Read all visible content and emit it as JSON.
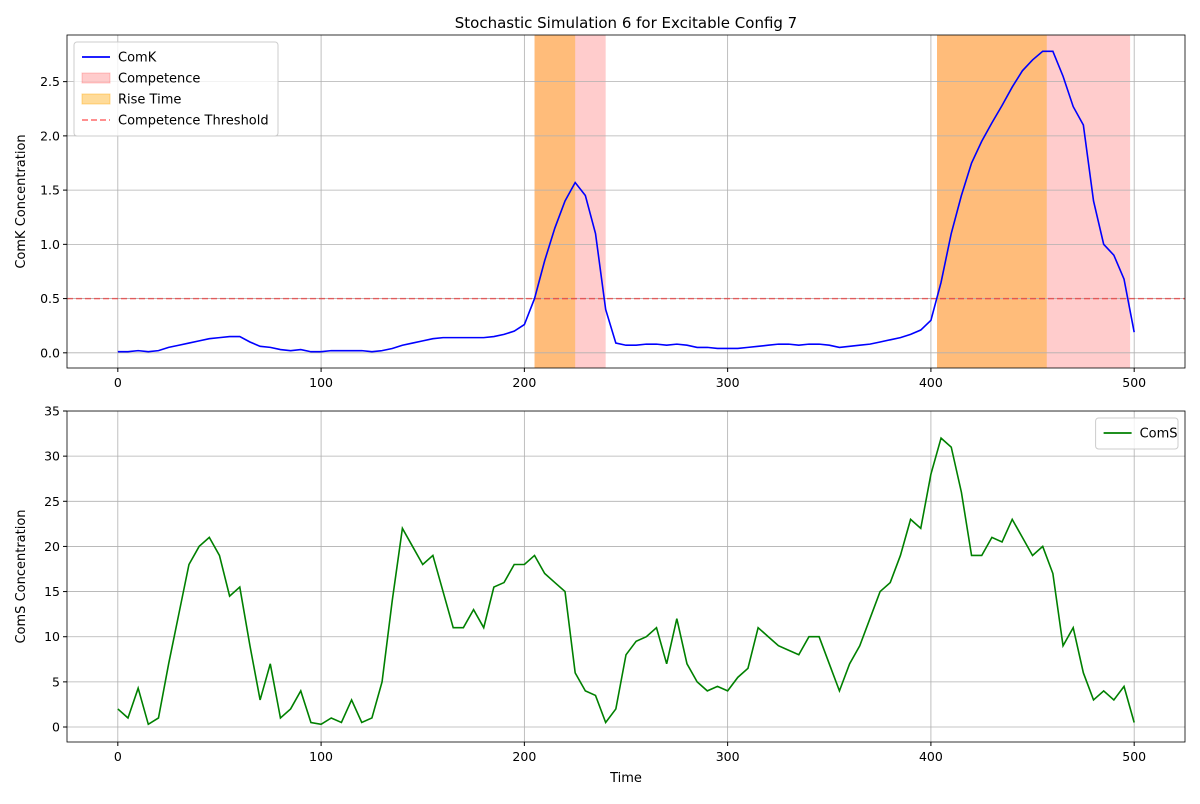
{
  "chart_data": [
    {
      "type": "line",
      "title": "Stochastic Simulation 6 for Excitable Config 7",
      "ylabel": "ComK Concentration",
      "x": [
        0,
        5,
        10,
        15,
        20,
        25,
        30,
        35,
        40,
        45,
        50,
        55,
        60,
        65,
        70,
        75,
        80,
        85,
        90,
        95,
        100,
        105,
        110,
        115,
        120,
        125,
        130,
        135,
        140,
        145,
        150,
        155,
        160,
        165,
        170,
        175,
        180,
        185,
        190,
        195,
        200,
        205,
        210,
        215,
        220,
        225,
        230,
        235,
        240,
        245,
        250,
        255,
        260,
        265,
        270,
        275,
        280,
        285,
        290,
        295,
        300,
        305,
        310,
        315,
        320,
        325,
        330,
        335,
        340,
        345,
        350,
        355,
        360,
        365,
        370,
        375,
        380,
        385,
        390,
        395,
        400,
        405,
        410,
        415,
        420,
        425,
        430,
        435,
        440,
        445,
        450,
        455,
        460,
        465,
        470,
        475,
        480,
        485,
        490,
        495,
        500
      ],
      "series": [
        {
          "name": "ComK",
          "color": "#0000ff",
          "values": [
            0.01,
            0.01,
            0.02,
            0.01,
            0.02,
            0.05,
            0.07,
            0.09,
            0.11,
            0.13,
            0.14,
            0.15,
            0.15,
            0.1,
            0.06,
            0.05,
            0.03,
            0.02,
            0.03,
            0.01,
            0.01,
            0.02,
            0.02,
            0.02,
            0.02,
            0.01,
            0.02,
            0.04,
            0.07,
            0.09,
            0.11,
            0.13,
            0.14,
            0.14,
            0.14,
            0.14,
            0.14,
            0.15,
            0.17,
            0.2,
            0.26,
            0.5,
            0.85,
            1.15,
            1.4,
            1.57,
            1.45,
            1.1,
            0.4,
            0.09,
            0.07,
            0.07,
            0.08,
            0.08,
            0.07,
            0.08,
            0.07,
            0.05,
            0.05,
            0.04,
            0.04,
            0.04,
            0.05,
            0.06,
            0.07,
            0.08,
            0.08,
            0.07,
            0.08,
            0.08,
            0.07,
            0.05,
            0.06,
            0.07,
            0.08,
            0.1,
            0.12,
            0.14,
            0.17,
            0.21,
            0.3,
            0.65,
            1.1,
            1.45,
            1.75,
            1.95,
            2.12,
            2.28,
            2.45,
            2.6,
            2.7,
            2.78,
            2.78,
            2.55,
            2.27,
            2.1,
            1.4,
            1.0,
            0.9,
            0.68,
            0.19
          ]
        }
      ],
      "spans": [
        {
          "name": "Competence",
          "color": "#ff0000",
          "alpha": 0.2,
          "ranges": [
            [
              205,
              240
            ],
            [
              403,
              498
            ]
          ]
        },
        {
          "name": "Rise Time",
          "color": "#ffa500",
          "alpha": 0.4,
          "ranges": [
            [
              205,
              225
            ],
            [
              403,
              457
            ]
          ]
        }
      ],
      "hlines": [
        {
          "name": "Competence Threshold",
          "value": 0.5,
          "color": "#ff0000",
          "alpha": 0.5,
          "dashed": true
        }
      ],
      "xlim": [
        -25,
        525
      ],
      "xticks": [
        0,
        100,
        200,
        300,
        400,
        500
      ],
      "ylim": [
        -0.14,
        2.93
      ],
      "yticks": [
        {
          "value": 0,
          "label": "0.0"
        },
        0.5,
        {
          "value": 1,
          "label": "1.0"
        },
        1.5,
        {
          "value": 2,
          "label": "2.0"
        },
        2.5
      ],
      "grid": true,
      "legend": "upper-left"
    },
    {
      "type": "line",
      "ylabel": "ComS Concentration",
      "xlabel": "Time",
      "x": [
        0,
        5,
        10,
        15,
        20,
        25,
        30,
        35,
        40,
        45,
        50,
        55,
        60,
        65,
        70,
        75,
        80,
        85,
        90,
        95,
        100,
        105,
        110,
        115,
        120,
        125,
        130,
        135,
        140,
        145,
        150,
        155,
        160,
        165,
        170,
        175,
        180,
        185,
        190,
        195,
        200,
        205,
        210,
        215,
        220,
        225,
        230,
        235,
        240,
        245,
        250,
        255,
        260,
        265,
        270,
        275,
        280,
        285,
        290,
        295,
        300,
        305,
        310,
        315,
        320,
        325,
        330,
        335,
        340,
        345,
        350,
        355,
        360,
        365,
        370,
        375,
        380,
        385,
        390,
        395,
        400,
        405,
        410,
        415,
        420,
        425,
        430,
        435,
        440,
        445,
        450,
        455,
        460,
        465,
        470,
        475,
        480,
        485,
        490,
        495,
        500
      ],
      "series": [
        {
          "name": "ComS",
          "color": "#008000",
          "values": [
            2,
            1,
            4.3,
            0.3,
            1,
            7,
            12.5,
            18,
            20,
            21,
            19,
            14.5,
            15.5,
            9,
            3,
            7,
            1,
            2,
            4,
            0.5,
            0.3,
            1,
            0.5,
            3,
            0.5,
            1,
            5,
            14,
            22,
            20,
            18,
            19,
            15,
            11,
            11,
            13,
            11,
            15.5,
            16,
            18,
            18,
            19,
            17,
            16,
            15,
            6,
            4,
            3.5,
            0.5,
            2,
            8,
            9.5,
            10,
            11,
            7,
            12,
            7,
            5,
            4,
            4.5,
            4,
            5.5,
            6.5,
            11,
            10,
            9,
            8.5,
            8,
            10,
            10,
            7,
            4,
            7,
            9,
            12,
            15,
            16,
            19,
            23,
            22,
            28,
            32,
            31,
            26,
            19,
            19,
            21,
            20.5,
            23,
            21,
            19,
            20,
            17,
            9,
            11,
            6,
            3,
            4,
            3,
            4.5,
            0.5
          ]
        }
      ],
      "xlim": [
        -25,
        525
      ],
      "xticks": [
        0,
        100,
        200,
        300,
        400,
        500
      ],
      "ylim": [
        -1.66,
        35
      ],
      "yticks": [
        0,
        5,
        10,
        15,
        20,
        25,
        30,
        35
      ],
      "grid": true,
      "legend": "upper-right"
    }
  ]
}
